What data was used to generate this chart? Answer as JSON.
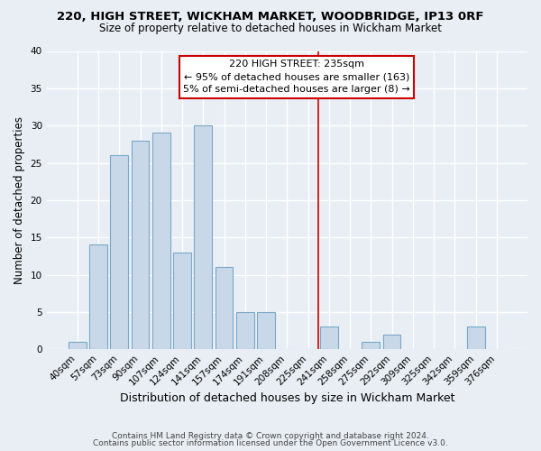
{
  "title": "220, HIGH STREET, WICKHAM MARKET, WOODBRIDGE, IP13 0RF",
  "subtitle": "Size of property relative to detached houses in Wickham Market",
  "xlabel": "Distribution of detached houses by size in Wickham Market",
  "ylabel": "Number of detached properties",
  "bar_labels": [
    "40sqm",
    "57sqm",
    "73sqm",
    "90sqm",
    "107sqm",
    "124sqm",
    "141sqm",
    "157sqm",
    "174sqm",
    "191sqm",
    "208sqm",
    "225sqm",
    "241sqm",
    "258sqm",
    "275sqm",
    "292sqm",
    "309sqm",
    "325sqm",
    "342sqm",
    "359sqm",
    "376sqm"
  ],
  "bar_values": [
    1,
    14,
    26,
    28,
    29,
    13,
    30,
    11,
    5,
    5,
    0,
    0,
    3,
    0,
    1,
    2,
    0,
    0,
    0,
    3,
    0
  ],
  "bar_color": "#c8d8e8",
  "bar_edge_color": "#7aa8c8",
  "vline_color": "#cc0000",
  "vline_pos": 11.5,
  "ylim": [
    0,
    40
  ],
  "yticks": [
    0,
    5,
    10,
    15,
    20,
    25,
    30,
    35,
    40
  ],
  "annotation_title": "220 HIGH STREET: 235sqm",
  "annotation_line1": "← 95% of detached houses are smaller (163)",
  "annotation_line2": "5% of semi-detached houses are larger (8) →",
  "footer1": "Contains HM Land Registry data © Crown copyright and database right 2024.",
  "footer2": "Contains public sector information licensed under the Open Government Licence v3.0.",
  "bg_color": "#e8eef4",
  "grid_color": "#ffffff",
  "title_fontsize": 9.5,
  "subtitle_fontsize": 8.5,
  "xlabel_fontsize": 9,
  "ylabel_fontsize": 8.5,
  "tick_fontsize": 7.5,
  "footer_fontsize": 6.5,
  "ann_fontsize": 8,
  "ann_box_color": "#cc0000"
}
